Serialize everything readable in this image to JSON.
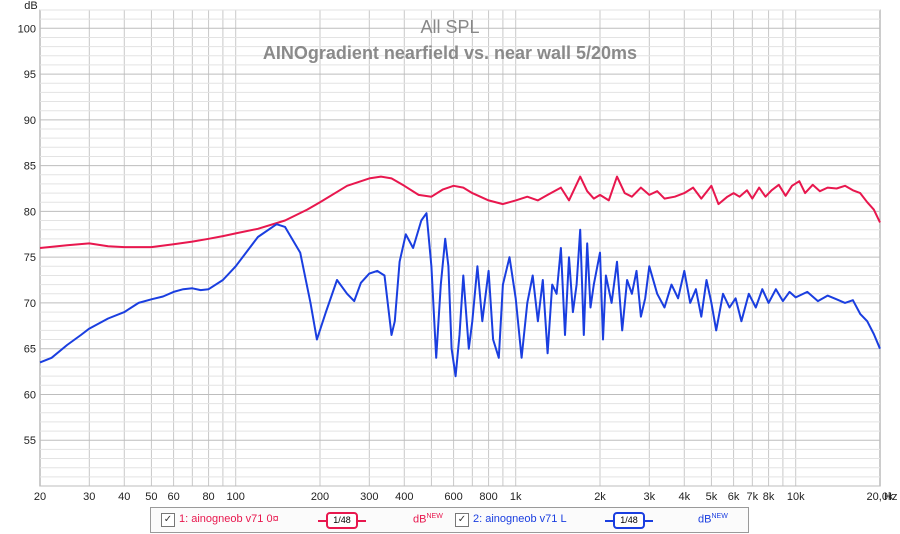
{
  "chart_data": {
    "type": "line",
    "title": "All SPL",
    "subtitle": "AINOgradient nearfield vs. near wall 5/20ms",
    "ylabel": "dB",
    "xlabel": "Hz",
    "xscale": "log",
    "xlim": [
      20,
      20000
    ],
    "ylim": [
      50,
      102
    ],
    "grid": true,
    "ytick_labels": [
      "55",
      "60",
      "65",
      "70",
      "75",
      "80",
      "85",
      "90",
      "95",
      "100"
    ],
    "xtick_labels": [
      {
        "v": 20,
        "t": "20"
      },
      {
        "v": 30,
        "t": "30"
      },
      {
        "v": 40,
        "t": "40"
      },
      {
        "v": 50,
        "t": "50"
      },
      {
        "v": 60,
        "t": "60"
      },
      {
        "v": 80,
        "t": "80"
      },
      {
        "v": 100,
        "t": "100"
      },
      {
        "v": 200,
        "t": "200"
      },
      {
        "v": 300,
        "t": "300"
      },
      {
        "v": 400,
        "t": "400"
      },
      {
        "v": 600,
        "t": "600"
      },
      {
        "v": 800,
        "t": "800"
      },
      {
        "v": 1000,
        "t": "1k"
      },
      {
        "v": 2000,
        "t": "2k"
      },
      {
        "v": 3000,
        "t": "3k"
      },
      {
        "v": 4000,
        "t": "4k"
      },
      {
        "v": 5000,
        "t": "5k"
      },
      {
        "v": 6000,
        "t": "6k"
      },
      {
        "v": 7000,
        "t": "7k"
      },
      {
        "v": 8000,
        "t": "8k"
      },
      {
        "v": 10000,
        "t": "10k"
      },
      {
        "v": 20000,
        "t": "20,0k"
      }
    ],
    "series": [
      {
        "name": "1: ainogneob v71 0¤",
        "color": "#e8174e",
        "points": [
          [
            20,
            76.0
          ],
          [
            25,
            76.3
          ],
          [
            30,
            76.5
          ],
          [
            35,
            76.2
          ],
          [
            40,
            76.1
          ],
          [
            50,
            76.1
          ],
          [
            60,
            76.4
          ],
          [
            70,
            76.7
          ],
          [
            80,
            77.0
          ],
          [
            90,
            77.3
          ],
          [
            100,
            77.6
          ],
          [
            120,
            78.1
          ],
          [
            150,
            79.0
          ],
          [
            180,
            80.2
          ],
          [
            200,
            81.0
          ],
          [
            250,
            82.8
          ],
          [
            300,
            83.6
          ],
          [
            330,
            83.8
          ],
          [
            360,
            83.6
          ],
          [
            400,
            82.8
          ],
          [
            450,
            81.8
          ],
          [
            500,
            81.6
          ],
          [
            550,
            82.4
          ],
          [
            600,
            82.8
          ],
          [
            650,
            82.6
          ],
          [
            700,
            82.0
          ],
          [
            800,
            81.2
          ],
          [
            900,
            80.8
          ],
          [
            1000,
            81.2
          ],
          [
            1100,
            81.6
          ],
          [
            1200,
            81.2
          ],
          [
            1300,
            81.8
          ],
          [
            1450,
            82.6
          ],
          [
            1550,
            81.2
          ],
          [
            1700,
            83.8
          ],
          [
            1800,
            82.2
          ],
          [
            1900,
            81.4
          ],
          [
            2000,
            81.8
          ],
          [
            2150,
            81.2
          ],
          [
            2300,
            83.8
          ],
          [
            2450,
            82.0
          ],
          [
            2600,
            81.6
          ],
          [
            2800,
            82.6
          ],
          [
            3000,
            81.8
          ],
          [
            3200,
            82.2
          ],
          [
            3400,
            81.4
          ],
          [
            3700,
            81.6
          ],
          [
            4000,
            82.0
          ],
          [
            4300,
            82.6
          ],
          [
            4600,
            81.4
          ],
          [
            5000,
            82.8
          ],
          [
            5300,
            80.8
          ],
          [
            5700,
            81.6
          ],
          [
            6000,
            82.0
          ],
          [
            6300,
            81.6
          ],
          [
            6700,
            82.3
          ],
          [
            7000,
            81.4
          ],
          [
            7400,
            82.6
          ],
          [
            7800,
            81.6
          ],
          [
            8200,
            82.3
          ],
          [
            8700,
            82.9
          ],
          [
            9200,
            81.7
          ],
          [
            9700,
            82.8
          ],
          [
            10300,
            83.3
          ],
          [
            10800,
            82.0
          ],
          [
            11500,
            82.9
          ],
          [
            12200,
            82.2
          ],
          [
            13000,
            82.6
          ],
          [
            14000,
            82.5
          ],
          [
            15000,
            82.8
          ],
          [
            16000,
            82.3
          ],
          [
            17000,
            82.0
          ],
          [
            18000,
            81.0
          ],
          [
            19000,
            80.2
          ],
          [
            20000,
            78.8
          ]
        ]
      },
      {
        "name": "2: ainogneob v71 L",
        "color": "#1a3ee0",
        "points": [
          [
            20,
            63.5
          ],
          [
            22,
            64.0
          ],
          [
            25,
            65.4
          ],
          [
            28,
            66.5
          ],
          [
            30,
            67.2
          ],
          [
            35,
            68.3
          ],
          [
            40,
            69.0
          ],
          [
            45,
            70.0
          ],
          [
            50,
            70.4
          ],
          [
            55,
            70.7
          ],
          [
            60,
            71.2
          ],
          [
            65,
            71.5
          ],
          [
            70,
            71.6
          ],
          [
            75,
            71.4
          ],
          [
            80,
            71.5
          ],
          [
            90,
            72.5
          ],
          [
            100,
            74.0
          ],
          [
            120,
            77.2
          ],
          [
            140,
            78.6
          ],
          [
            150,
            78.3
          ],
          [
            170,
            75.5
          ],
          [
            185,
            70.0
          ],
          [
            195,
            66.0
          ],
          [
            210,
            69.0
          ],
          [
            230,
            72.5
          ],
          [
            250,
            71.0
          ],
          [
            265,
            70.2
          ],
          [
            280,
            72.2
          ],
          [
            300,
            73.2
          ],
          [
            320,
            73.5
          ],
          [
            340,
            73.0
          ],
          [
            360,
            66.5
          ],
          [
            370,
            68.0
          ],
          [
            385,
            74.5
          ],
          [
            405,
            77.5
          ],
          [
            430,
            76.0
          ],
          [
            460,
            79.0
          ],
          [
            480,
            79.8
          ],
          [
            500,
            74.0
          ],
          [
            520,
            64.0
          ],
          [
            540,
            72.0
          ],
          [
            560,
            77.0
          ],
          [
            575,
            74.0
          ],
          [
            590,
            65.0
          ],
          [
            610,
            62.0
          ],
          [
            630,
            66.5
          ],
          [
            650,
            73.0
          ],
          [
            680,
            65.0
          ],
          [
            700,
            68.0
          ],
          [
            730,
            74.0
          ],
          [
            760,
            68.0
          ],
          [
            800,
            73.5
          ],
          [
            830,
            66.0
          ],
          [
            870,
            64.0
          ],
          [
            900,
            72.0
          ],
          [
            950,
            75.0
          ],
          [
            1000,
            70.5
          ],
          [
            1050,
            64.0
          ],
          [
            1100,
            70.0
          ],
          [
            1150,
            73.0
          ],
          [
            1200,
            68.0
          ],
          [
            1250,
            72.5
          ],
          [
            1300,
            64.5
          ],
          [
            1350,
            72.0
          ],
          [
            1400,
            71.0
          ],
          [
            1450,
            76.0
          ],
          [
            1500,
            66.5
          ],
          [
            1550,
            75.0
          ],
          [
            1600,
            69.0
          ],
          [
            1650,
            72.0
          ],
          [
            1700,
            78.0
          ],
          [
            1750,
            66.5
          ],
          [
            1800,
            76.5
          ],
          [
            1850,
            69.5
          ],
          [
            1900,
            72.0
          ],
          [
            2000,
            75.5
          ],
          [
            2050,
            66.0
          ],
          [
            2100,
            73.0
          ],
          [
            2200,
            70.0
          ],
          [
            2300,
            74.5
          ],
          [
            2400,
            67.0
          ],
          [
            2500,
            72.5
          ],
          [
            2600,
            71.0
          ],
          [
            2700,
            73.5
          ],
          [
            2800,
            68.5
          ],
          [
            2900,
            70.5
          ],
          [
            3000,
            74.0
          ],
          [
            3200,
            71.0
          ],
          [
            3400,
            69.5
          ],
          [
            3600,
            72.0
          ],
          [
            3800,
            70.5
          ],
          [
            4000,
            73.5
          ],
          [
            4200,
            70.0
          ],
          [
            4400,
            71.5
          ],
          [
            4600,
            68.5
          ],
          [
            4800,
            72.5
          ],
          [
            5000,
            70.0
          ],
          [
            5200,
            67.0
          ],
          [
            5500,
            71.0
          ],
          [
            5800,
            69.5
          ],
          [
            6100,
            70.5
          ],
          [
            6400,
            68.0
          ],
          [
            6800,
            71.0
          ],
          [
            7200,
            69.5
          ],
          [
            7600,
            71.5
          ],
          [
            8000,
            70.0
          ],
          [
            8500,
            71.5
          ],
          [
            9000,
            70.2
          ],
          [
            9500,
            71.2
          ],
          [
            10000,
            70.6
          ],
          [
            11000,
            71.2
          ],
          [
            12000,
            70.2
          ],
          [
            13000,
            70.8
          ],
          [
            14000,
            70.4
          ],
          [
            15000,
            70.0
          ],
          [
            16000,
            70.3
          ],
          [
            17000,
            68.8
          ],
          [
            18000,
            68.0
          ],
          [
            19000,
            66.6
          ],
          [
            20000,
            65.0
          ]
        ]
      }
    ]
  },
  "legend": {
    "items": [
      {
        "checked": "✓",
        "label": "1: ainogneob v71 0¤",
        "smoothing": "1/48",
        "unit": "dB",
        "unit_sup": "NEW",
        "color": "#e8174e"
      },
      {
        "checked": "✓",
        "label": "2: ainogneob v71 L",
        "smoothing": "1/48",
        "unit": "dB",
        "unit_sup": "NEW",
        "color": "#1a3ee0"
      }
    ]
  }
}
